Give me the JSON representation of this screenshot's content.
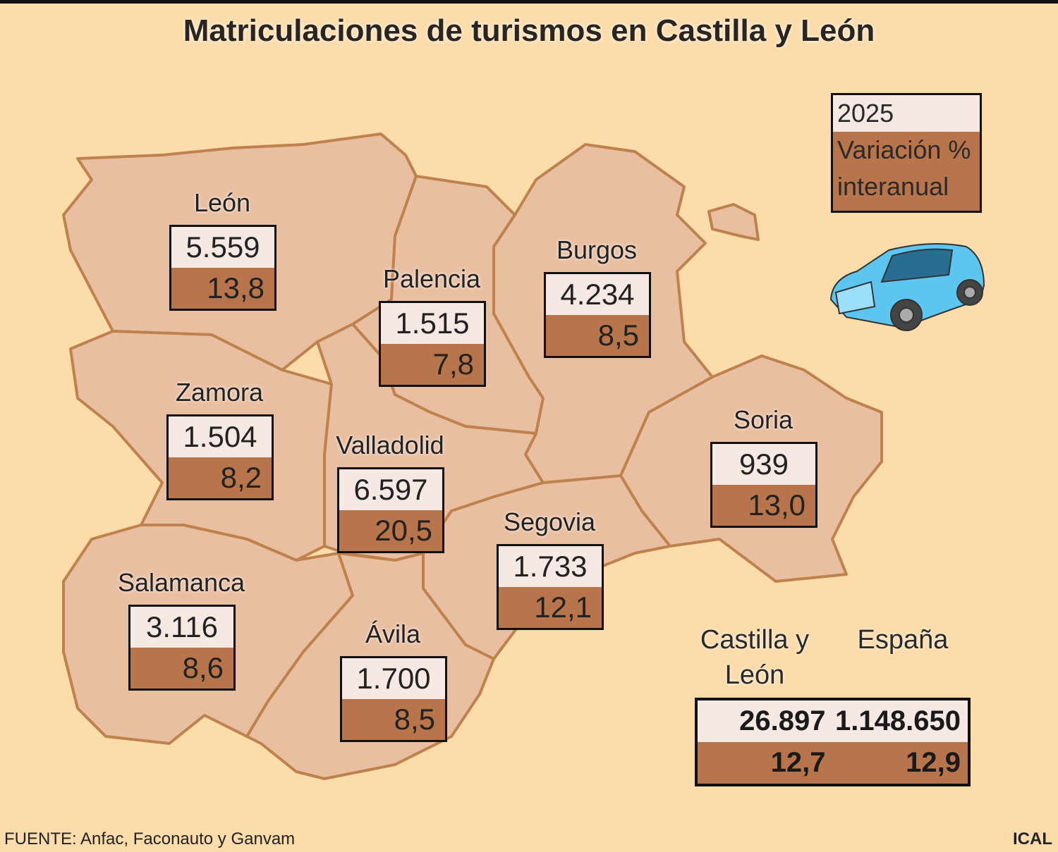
{
  "title": "Matriculaciones de turismos en Castilla y León",
  "legend": {
    "year": "2025",
    "variation": "Variación % interanual"
  },
  "provinces": [
    {
      "name": "León",
      "registrations": "5.559",
      "variation": "13,8"
    },
    {
      "name": "Palencia",
      "registrations": "1.515",
      "variation": "7,8"
    },
    {
      "name": "Burgos",
      "registrations": "4.234",
      "variation": "8,5"
    },
    {
      "name": "Zamora",
      "registrations": "1.504",
      "variation": "8,2"
    },
    {
      "name": "Valladolid",
      "registrations": "6.597",
      "variation": "20,5"
    },
    {
      "name": "Soria",
      "registrations": "939",
      "variation": "13,0"
    },
    {
      "name": "Segovia",
      "registrations": "1.733",
      "variation": "12,1"
    },
    {
      "name": "Salamanca",
      "registrations": "3.116",
      "variation": "8,6"
    },
    {
      "name": "Ávila",
      "registrations": "1.700",
      "variation": "8,5"
    }
  ],
  "totals": {
    "castilla_y_leon": {
      "label": "Castilla y León",
      "registrations": "26.897",
      "variation": "12,7"
    },
    "espana": {
      "label": "España",
      "registrations": "1.148.650",
      "variation": "12,9"
    }
  },
  "source": "FUENTE: Anfac, Faconauto y Ganvam",
  "credit": "ICAL"
}
